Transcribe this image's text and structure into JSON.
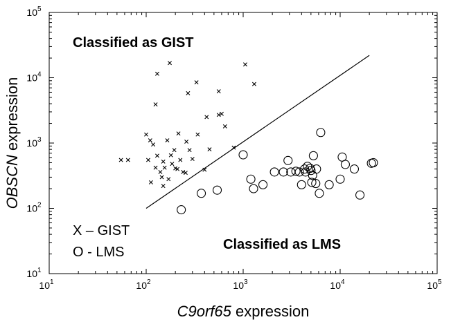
{
  "chart_data": {
    "type": "scatter",
    "xscale": "log",
    "yscale": "log",
    "xlim": [
      10,
      100000
    ],
    "ylim": [
      10,
      100000
    ],
    "ticks": [
      {
        "base": "10",
        "exp": "1",
        "value": 10
      },
      {
        "base": "10",
        "exp": "2",
        "value": 100
      },
      {
        "base": "10",
        "exp": "3",
        "value": 1000
      },
      {
        "base": "10",
        "exp": "4",
        "value": 10000
      },
      {
        "base": "10",
        "exp": "5",
        "value": 100000
      }
    ],
    "xlabel": {
      "italic": "C9orf65",
      "rest": " expression"
    },
    "ylabel": {
      "italic": "OBSCN",
      "rest": " expression"
    },
    "annotations": {
      "gist_region": "Classified as GIST",
      "lms_region": "Classified as LMS"
    },
    "legend": {
      "placement": "bottom-left",
      "entries": [
        "X – GIST",
        "O - LMS"
      ]
    },
    "grid": false,
    "boundary_line": {
      "x": [
        100,
        20000
      ],
      "y": [
        100,
        22000
      ]
    },
    "series": [
      {
        "name": "GIST",
        "marker": "x",
        "points": [
          [
            55,
            550
          ],
          [
            65,
            550
          ],
          [
            100,
            1350
          ],
          [
            110,
            1100
          ],
          [
            105,
            550
          ],
          [
            112,
            250
          ],
          [
            118,
            950
          ],
          [
            125,
            420
          ],
          [
            130,
            640
          ],
          [
            140,
            360
          ],
          [
            145,
            300
          ],
          [
            150,
            220
          ],
          [
            150,
            520
          ],
          [
            155,
            420
          ],
          [
            165,
            1100
          ],
          [
            170,
            280
          ],
          [
            180,
            650
          ],
          [
            175,
            16800
          ],
          [
            185,
            480
          ],
          [
            195,
            780
          ],
          [
            200,
            410
          ],
          [
            210,
            400
          ],
          [
            215,
            1400
          ],
          [
            225,
            550
          ],
          [
            240,
            360
          ],
          [
            255,
            350
          ],
          [
            260,
            1050
          ],
          [
            280,
            780
          ],
          [
            300,
            570
          ],
          [
            340,
            1350
          ],
          [
            330,
            8500
          ],
          [
            270,
            5800
          ],
          [
            125,
            3900
          ],
          [
            130,
            11500
          ],
          [
            400,
            390
          ],
          [
            420,
            2500
          ],
          [
            450,
            800
          ],
          [
            560,
            2700
          ],
          [
            560,
            6200
          ],
          [
            600,
            2800
          ],
          [
            650,
            1800
          ],
          [
            800,
            850
          ],
          [
            1050,
            16000
          ],
          [
            1300,
            8000
          ]
        ]
      },
      {
        "name": "LMS",
        "marker": "o",
        "points": [
          [
            230,
            95
          ],
          [
            370,
            170
          ],
          [
            540,
            190
          ],
          [
            1000,
            660
          ],
          [
            1200,
            280
          ],
          [
            1280,
            200
          ],
          [
            1600,
            230
          ],
          [
            2100,
            360
          ],
          [
            2600,
            360
          ],
          [
            2900,
            540
          ],
          [
            3100,
            360
          ],
          [
            3500,
            370
          ],
          [
            3800,
            360
          ],
          [
            4000,
            230
          ],
          [
            4300,
            400
          ],
          [
            4400,
            360
          ],
          [
            4600,
            440
          ],
          [
            4900,
            410
          ],
          [
            5000,
            380
          ],
          [
            5100,
            250
          ],
          [
            5200,
            320
          ],
          [
            5300,
            640
          ],
          [
            5600,
            240
          ],
          [
            5700,
            400
          ],
          [
            6100,
            170
          ],
          [
            6300,
            1450
          ],
          [
            7700,
            230
          ],
          [
            10000,
            280
          ],
          [
            10500,
            610
          ],
          [
            11300,
            470
          ],
          [
            14000,
            400
          ],
          [
            16000,
            160
          ],
          [
            21000,
            490
          ],
          [
            22000,
            500
          ]
        ]
      }
    ]
  }
}
